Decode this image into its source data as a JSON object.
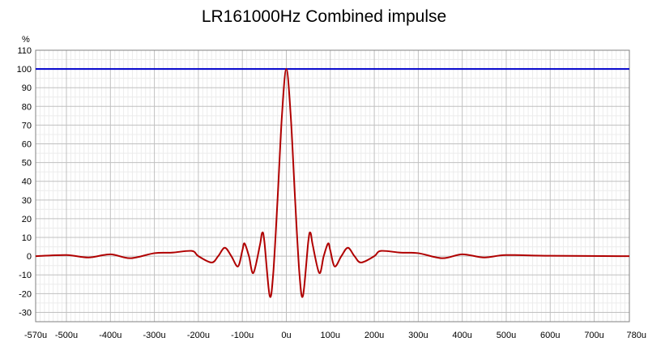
{
  "chart_data": {
    "type": "line",
    "title": "LR161000Hz Combined impulse",
    "ylabel": "%",
    "xlabel": "",
    "xlim": [
      -570,
      780
    ],
    "ylim": [
      -35,
      110
    ],
    "grid": true,
    "y_ticks": [
      110,
      100,
      90,
      80,
      70,
      60,
      50,
      40,
      30,
      20,
      10,
      0,
      -10,
      -20,
      -30
    ],
    "x_tick_labels": [
      "-570u",
      "-500u",
      "-400u",
      "-300u",
      "-200u",
      "-100u",
      "0u",
      "100u",
      "200u",
      "300u",
      "400u",
      "500u",
      "600u",
      "700u",
      "780u"
    ],
    "x_tick_values": [
      -570,
      -500,
      -400,
      -300,
      -200,
      -100,
      0,
      100,
      200,
      300,
      400,
      500,
      600,
      700,
      780
    ],
    "series": [
      {
        "color": "#0000cc",
        "x": [
          -570,
          780
        ],
        "y": [
          100,
          100
        ]
      },
      {
        "color": "#b00000",
        "x": [
          -570,
          -500,
          -450,
          -400,
          -355,
          -300,
          -260,
          -215,
          -200,
          -170,
          -155,
          -140,
          -125,
          -110,
          -100,
          -95,
          -85,
          -75,
          -60,
          -55,
          -50,
          -38,
          -30,
          -20,
          -10,
          0,
          10,
          20,
          30,
          38,
          50,
          55,
          60,
          75,
          85,
          95,
          100,
          110,
          125,
          140,
          155,
          170,
          200,
          215,
          260,
          300,
          355,
          400,
          450,
          500,
          600,
          780
        ],
        "y": [
          0,
          0.6,
          -0.7,
          1.0,
          -1.1,
          1.6,
          1.9,
          2.8,
          0,
          -3.4,
          0,
          4.5,
          0,
          -5.5,
          3,
          6.8,
          0,
          -9,
          6,
          12.5,
          8,
          -21,
          -10,
          30,
          75,
          100,
          75,
          30,
          -10,
          -21,
          8,
          12.5,
          6,
          -9,
          0,
          6.8,
          3,
          -5.5,
          0,
          4.5,
          0,
          -3.4,
          0,
          2.8,
          1.9,
          1.6,
          -1.1,
          1.0,
          -0.7,
          0.6,
          0.2,
          0
        ]
      }
    ]
  }
}
